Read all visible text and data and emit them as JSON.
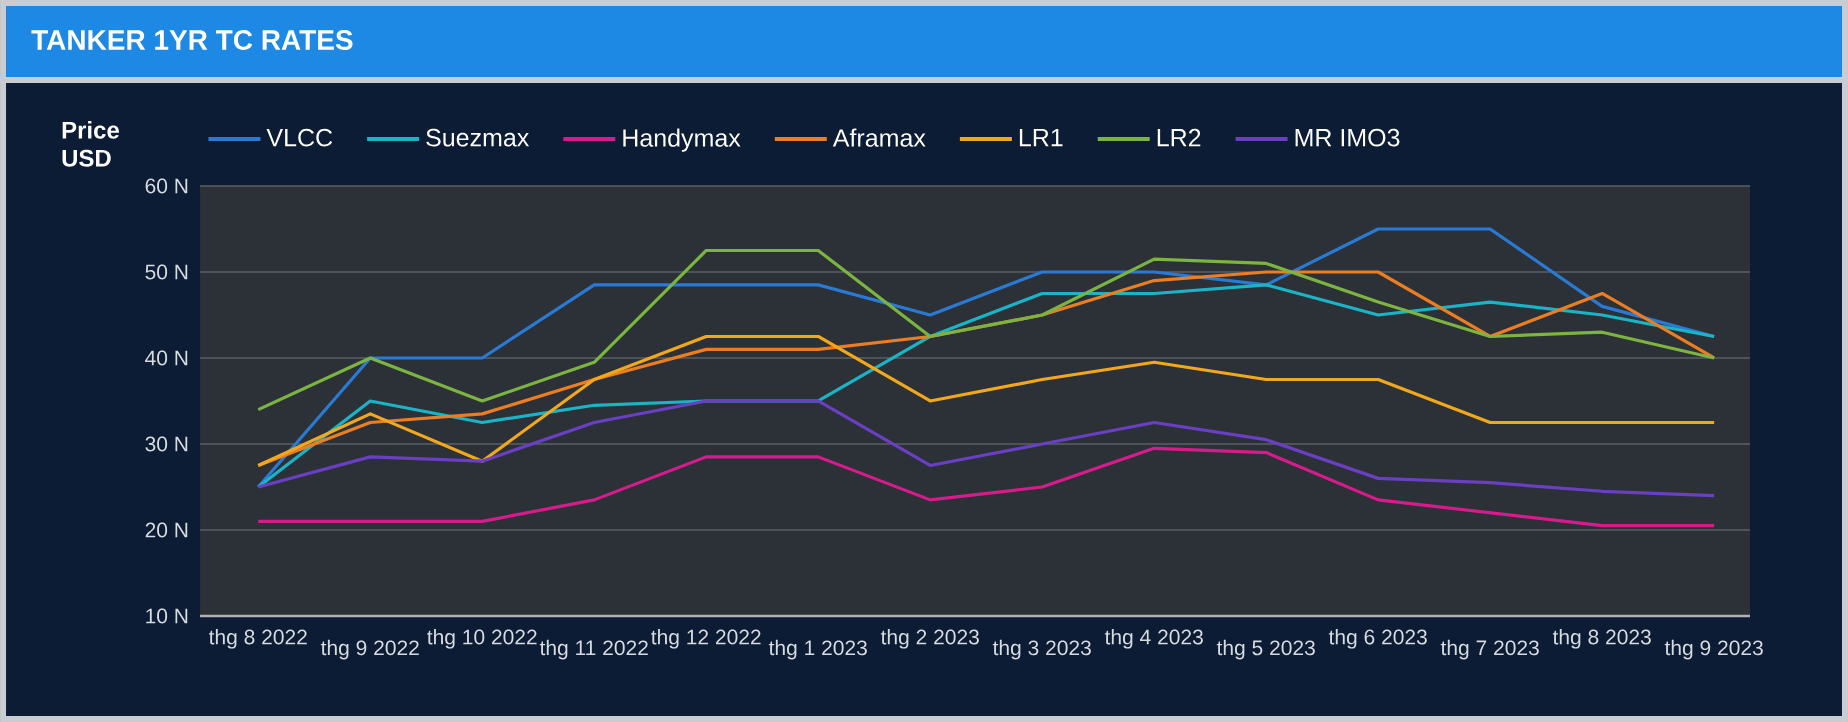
{
  "chart_data": {
    "type": "line",
    "title": "TANKER 1YR TC RATES",
    "ylabel": "Price USD",
    "categories": [
      "thg 8 2022",
      "thg 9 2022",
      "thg 10 2022",
      "thg 11 2022",
      "thg 12 2022",
      "thg 1 2023",
      "thg 2 2023",
      "thg 3 2023",
      "thg 4 2023",
      "thg 5 2023",
      "thg 6 2023",
      "thg 7 2023",
      "thg 8 2023",
      "thg 9 2023"
    ],
    "series": [
      {
        "name": "VLCC",
        "color": "#2a7ad5",
        "values": [
          25,
          40,
          40,
          48.5,
          48.5,
          48.5,
          45,
          50,
          50,
          48.5,
          55,
          55,
          46,
          42.5
        ]
      },
      {
        "name": "Suezmax",
        "color": "#1bb3c6",
        "values": [
          25,
          35,
          32.5,
          34.5,
          35,
          35,
          42.5,
          47.5,
          47.5,
          48.5,
          45,
          46.5,
          45,
          42.5
        ]
      },
      {
        "name": "Handymax",
        "color": "#d81b8c",
        "values": [
          21,
          21,
          21,
          23.5,
          28.5,
          28.5,
          23.5,
          25,
          29.5,
          29,
          23.5,
          22,
          20.5,
          20.5
        ]
      },
      {
        "name": "Aframax",
        "color": "#ec7d22",
        "values": [
          27.5,
          32.5,
          33.5,
          37.5,
          41,
          41,
          42.5,
          45,
          49,
          50,
          50,
          42.5,
          47.5,
          40
        ]
      },
      {
        "name": "LR1",
        "color": "#f2a81d",
        "values": [
          27.5,
          33.5,
          28,
          37.5,
          42.5,
          42.5,
          35,
          37.5,
          39.5,
          37.5,
          37.5,
          32.5,
          32.5,
          32.5
        ]
      },
      {
        "name": "LR2",
        "color": "#7cb442",
        "values": [
          34,
          40,
          35,
          39.5,
          52.5,
          52.5,
          42.5,
          45,
          51.5,
          51,
          46.5,
          42.5,
          43,
          40
        ]
      },
      {
        "name": "MR IMO3",
        "color": "#6a3fc3",
        "values": [
          25,
          28.5,
          28,
          32.5,
          35,
          35,
          27.5,
          30,
          32.5,
          30.5,
          26,
          25.5,
          24.5,
          24
        ]
      }
    ],
    "ylim": [
      10,
      60
    ],
    "yticks": [
      {
        "value": 10,
        "label": "10 N"
      },
      {
        "value": 20,
        "label": "20 N"
      },
      {
        "value": 30,
        "label": "30 N"
      },
      {
        "value": 40,
        "label": "40 N"
      },
      {
        "value": 50,
        "label": "50 N"
      },
      {
        "value": 60,
        "label": "60 N"
      }
    ],
    "grid": "y",
    "legend": "top",
    "marker": "none",
    "line_style": "solid"
  }
}
